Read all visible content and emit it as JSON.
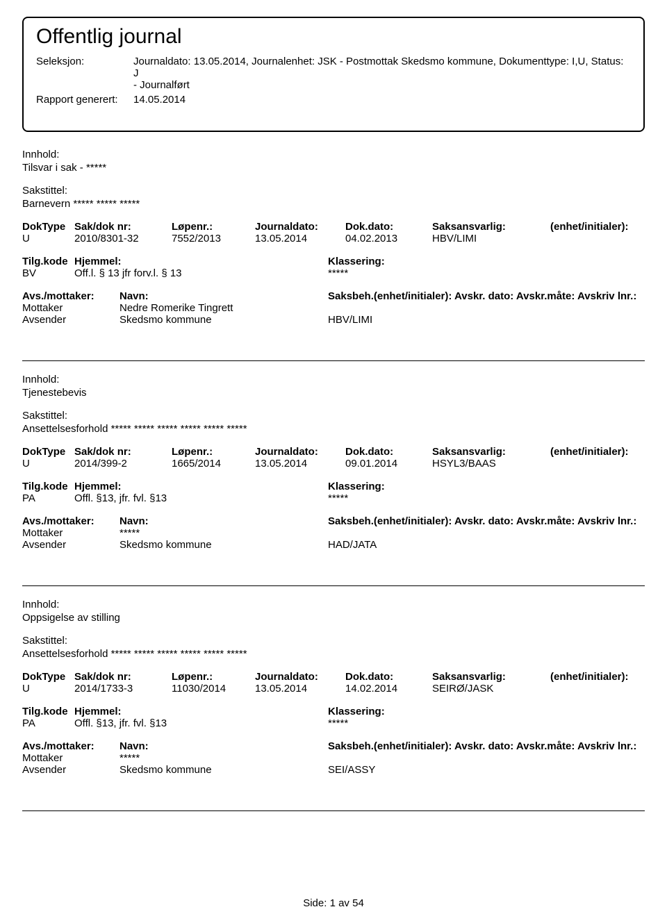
{
  "header": {
    "title": "Offentlig journal",
    "seleksjon_label": "Seleksjon:",
    "seleksjon_line1": "Journaldato: 13.05.2014, Journalenhet: JSK - Postmottak Skedsmo kommune, Dokumenttype: I,U, Status: J",
    "seleksjon_line2": "- Journalført",
    "rapport_label": "Rapport generert:",
    "rapport_value": "14.05.2014"
  },
  "labels": {
    "innhold": "Innhold:",
    "sakstittel": "Sakstittel:",
    "doktype": "DokType",
    "sakdok": "Sak/dok nr:",
    "lopenr": "Løpenr.:",
    "journaldato": "Journaldato:",
    "dokdato": "Dok.dato:",
    "saksansvarlig": "Saksansvarlig:",
    "enhet": "(enhet/initialer):",
    "tilgkode": "Tilg.kode",
    "hjemmel": "Hjemmel:",
    "klassering": "Klassering:",
    "avsmottaker": "Avs./mottaker:",
    "navn": "Navn:",
    "saksbeh_full": "Saksbeh.(enhet/initialer): Avskr. dato: Avskr.måte: Avskriv lnr.:"
  },
  "entries": [
    {
      "innhold": "Tilsvar i sak - *****",
      "sakstittel": "Barnevern ***** ***** *****",
      "doktype": "U",
      "sakdok": "2010/8301-32",
      "lopenr": "7552/2013",
      "journaldato": "13.05.2014",
      "dokdato": "04.02.2013",
      "saksansvarlig": "HBV/LIMI",
      "tilgkode": "BV",
      "hjemmel": "Off.l. § 13 jfr forv.l. § 13",
      "klassering": "*****",
      "parties": [
        {
          "role": "Mottaker",
          "name": "Nedre Romerike Tingrett",
          "unit": ""
        },
        {
          "role": "Avsender",
          "name": "Skedsmo kommune",
          "unit": "HBV/LIMI"
        }
      ]
    },
    {
      "innhold": "Tjenestebevis",
      "sakstittel": "Ansettelsesforhold ***** ***** ***** ***** ***** *****",
      "doktype": "U",
      "sakdok": "2014/399-2",
      "lopenr": "1665/2014",
      "journaldato": "13.05.2014",
      "dokdato": "09.01.2014",
      "saksansvarlig": "HSYL3/BAAS",
      "tilgkode": "PA",
      "hjemmel": "Offl. §13, jfr. fvl. §13",
      "klassering": "*****",
      "parties": [
        {
          "role": "Mottaker",
          "name": "*****",
          "unit": ""
        },
        {
          "role": "Avsender",
          "name": "Skedsmo kommune",
          "unit": "HAD/JATA"
        }
      ]
    },
    {
      "innhold": "Oppsigelse av stilling",
      "sakstittel": "Ansettelsesforhold ***** ***** ***** ***** ***** *****",
      "doktype": "U",
      "sakdok": "2014/1733-3",
      "lopenr": "11030/2014",
      "journaldato": "13.05.2014",
      "dokdato": "14.02.2014",
      "saksansvarlig": "SEIRØ/JASK",
      "tilgkode": "PA",
      "hjemmel": "Offl. §13, jfr. fvl. §13",
      "klassering": "*****",
      "parties": [
        {
          "role": "Mottaker",
          "name": "*****",
          "unit": ""
        },
        {
          "role": "Avsender",
          "name": "Skedsmo kommune",
          "unit": "SEI/ASSY"
        }
      ]
    }
  ],
  "footer": {
    "side_label": "Side:",
    "page": "1",
    "av": "av",
    "total": "54"
  }
}
